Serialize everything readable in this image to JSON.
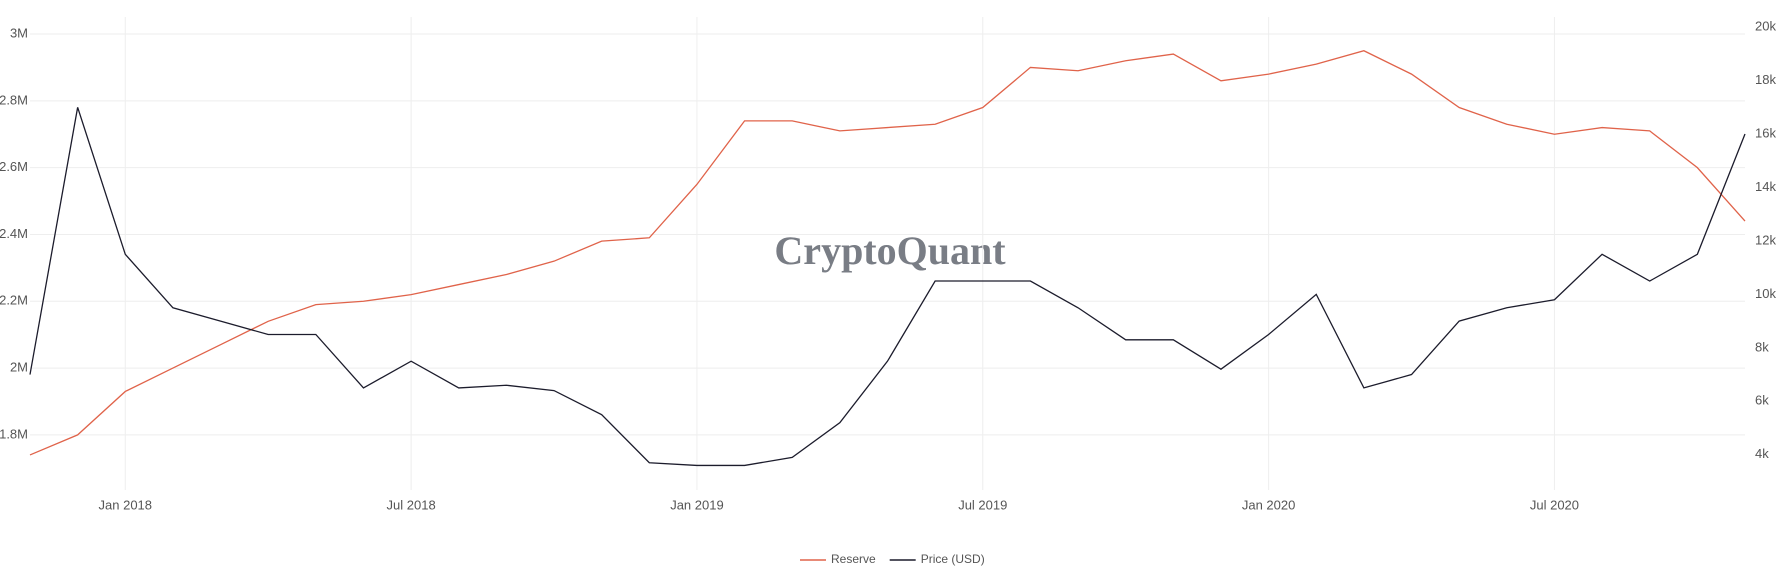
{
  "chart_data": {
    "type": "line",
    "watermark": "CryptoQuant",
    "x": [
      "2017-11",
      "2017-12",
      "2018-01",
      "2018-02",
      "2018-03",
      "2018-04",
      "2018-05",
      "2018-06",
      "2018-07",
      "2018-08",
      "2018-09",
      "2018-10",
      "2018-11",
      "2018-12",
      "2019-01",
      "2019-02",
      "2019-03",
      "2019-04",
      "2019-05",
      "2019-06",
      "2019-07",
      "2019-08",
      "2019-09",
      "2019-10",
      "2019-11",
      "2019-12",
      "2020-01",
      "2020-02",
      "2020-03",
      "2020-04",
      "2020-05",
      "2020-06",
      "2020-07",
      "2020-08",
      "2020-09",
      "2020-10",
      "2020-11"
    ],
    "series": [
      {
        "name": "Reserve",
        "color": "#e0634a",
        "axis": "y",
        "values": [
          1740000,
          1800000,
          1930000,
          2000000,
          2070000,
          2140000,
          2190000,
          2200000,
          2220000,
          2250000,
          2280000,
          2320000,
          2380000,
          2390000,
          2550000,
          2740000,
          2740000,
          2710000,
          2720000,
          2730000,
          2780000,
          2900000,
          2890000,
          2920000,
          2940000,
          2860000,
          2880000,
          2910000,
          2950000,
          2880000,
          2780000,
          2730000,
          2700000,
          2720000,
          2710000,
          2600000,
          2440000
        ]
      },
      {
        "name": "Price (USD)",
        "color": "#1c1c2c",
        "axis": "y2",
        "values": [
          7000,
          17000,
          11500,
          9500,
          9000,
          8500,
          8500,
          6500,
          7500,
          6500,
          6600,
          6400,
          5500,
          3700,
          3600,
          3600,
          3900,
          5200,
          7500,
          10500,
          10500,
          10500,
          9500,
          8300,
          8300,
          7200,
          8500,
          10000,
          6500,
          7000,
          9000,
          9500,
          9800,
          11500,
          10500,
          11500,
          16000
        ]
      }
    ],
    "xlim": [
      "2017-11",
      "2020-11"
    ],
    "xticks": [
      {
        "value": "2018-01",
        "label": "Jan 2018"
      },
      {
        "value": "2018-07",
        "label": "Jul 2018"
      },
      {
        "value": "2019-01",
        "label": "Jan 2019"
      },
      {
        "value": "2019-07",
        "label": "Jul 2019"
      },
      {
        "value": "2020-01",
        "label": "Jan 2020"
      },
      {
        "value": "2020-07",
        "label": "Jul 2020"
      }
    ],
    "ylim": [
      1635000,
      3051000
    ],
    "yticks": [
      {
        "value": 1800000,
        "label": "1.8M"
      },
      {
        "value": 2000000,
        "label": "2M"
      },
      {
        "value": 2200000,
        "label": "2.2M"
      },
      {
        "value": 2400000,
        "label": "2.4M"
      },
      {
        "value": 2600000,
        "label": "2.6M"
      },
      {
        "value": 2800000,
        "label": "2.8M"
      },
      {
        "value": 3000000,
        "label": "3M"
      }
    ],
    "y2lim": [
      2680,
      20380
    ],
    "y2ticks": [
      {
        "value": 4000,
        "label": "4k"
      },
      {
        "value": 6000,
        "label": "6k"
      },
      {
        "value": 8000,
        "label": "8k"
      },
      {
        "value": 10000,
        "label": "10k"
      },
      {
        "value": 12000,
        "label": "12k"
      },
      {
        "value": 14000,
        "label": "14k"
      },
      {
        "value": 16000,
        "label": "16k"
      },
      {
        "value": 18000,
        "label": "18k"
      },
      {
        "value": 20000,
        "label": "20k"
      }
    ],
    "grid": true,
    "legend": "bottom"
  }
}
